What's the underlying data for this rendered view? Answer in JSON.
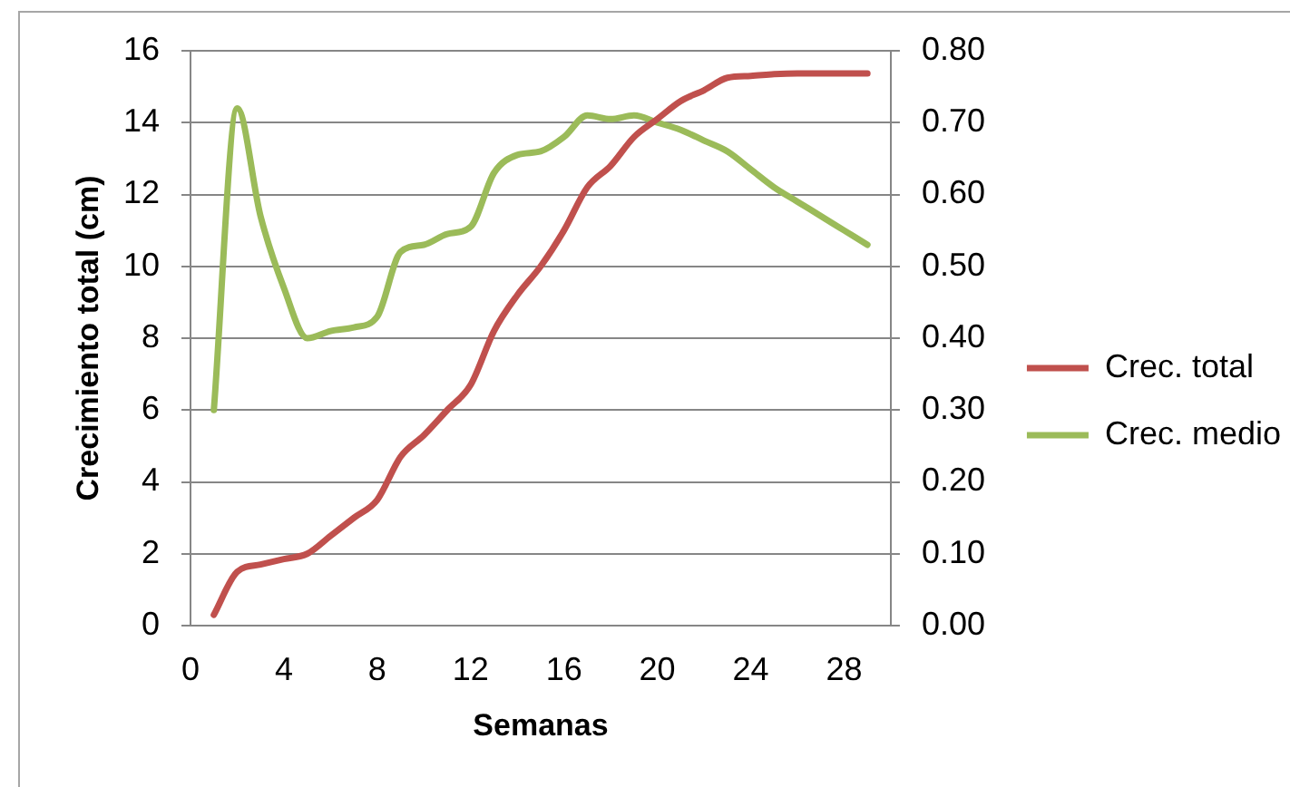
{
  "chart_data": {
    "type": "line",
    "xlabel": "Semanas",
    "ylabel": "Crecimiento total (cm)",
    "x": [
      1,
      2,
      3,
      4,
      5,
      6,
      7,
      8,
      9,
      10,
      11,
      12,
      13,
      14,
      15,
      16,
      17,
      18,
      19,
      20,
      21,
      22,
      23,
      24,
      25,
      26,
      27,
      28,
      29
    ],
    "series": [
      {
        "name": "Crec. total",
        "color": "#c0504d",
        "values": [
          0.3,
          1.5,
          1.7,
          1.85,
          2.0,
          2.5,
          3.0,
          3.5,
          4.7,
          5.3,
          6.0,
          6.7,
          8.2,
          9.2,
          10.0,
          11.0,
          12.2,
          12.8,
          13.6,
          14.1,
          14.6,
          14.9,
          15.25,
          15.3,
          15.35,
          15.37,
          15.37,
          15.37,
          15.37
        ]
      },
      {
        "name": "Crec. medio",
        "color": "#9bbb59",
        "axis": "y2",
        "values": [
          0.3,
          0.72,
          0.57,
          0.47,
          0.4,
          0.41,
          0.415,
          0.43,
          0.52,
          0.53,
          0.545,
          0.555,
          0.63,
          0.655,
          0.66,
          0.68,
          0.71,
          0.705,
          0.71,
          0.7,
          0.69,
          0.675,
          0.66,
          0.635,
          0.61,
          0.59,
          0.57,
          0.55,
          0.53
        ]
      }
    ],
    "xlim": [
      0,
      30
    ],
    "xticks": [
      0,
      4,
      8,
      12,
      16,
      20,
      24,
      28
    ],
    "ylim": [
      0,
      16
    ],
    "yticks": [
      0,
      2,
      4,
      6,
      8,
      10,
      12,
      14,
      16
    ],
    "y2lim": [
      0,
      0.8
    ],
    "y2ticks": [
      {
        "value": 0,
        "label": "0.00"
      },
      {
        "value": 0.1,
        "label": "0.10"
      },
      {
        "value": 0.2,
        "label": "0.20"
      },
      {
        "value": 0.3,
        "label": "0.30"
      },
      {
        "value": 0.4,
        "label": "0.40"
      },
      {
        "value": 0.5,
        "label": "0.50"
      },
      {
        "value": 0.6,
        "label": "0.60"
      },
      {
        "value": 0.7,
        "label": "0.70"
      },
      {
        "value": 0.8,
        "label": "0.80"
      }
    ],
    "grid": "y",
    "legend": "right",
    "line_style": "solid"
  }
}
